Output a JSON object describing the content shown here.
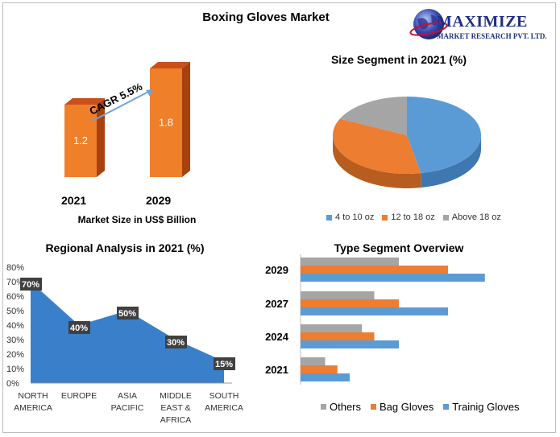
{
  "header": {
    "title": "Boxing Gloves Market",
    "logo_line1": "MAXIMIZE",
    "logo_line2": "MARKET RESEARCH PVT. LTD."
  },
  "market_size": {
    "cagr_label": "CAGR 5.5%",
    "caption": "Market Size in US$ Billion",
    "bars": [
      {
        "year": "2021",
        "value": 1.2,
        "label": "1.2"
      },
      {
        "year": "2029",
        "value": 1.8,
        "label": "1.8"
      }
    ]
  },
  "size_segment": {
    "title": "Size Segment in 2021 (%)",
    "legend": [
      "4 to 10 oz",
      "12 to 18 oz",
      "Above 18 oz"
    ]
  },
  "regional": {
    "title": "Regional Analysis in 2021 (%)"
  },
  "type_segment": {
    "title": "Type Segment Overview",
    "legend": [
      "Others",
      "Bag Gloves",
      "Trainig Gloves"
    ]
  },
  "colors": {
    "blue": "#5b9bd5",
    "orange": "#ed7d31",
    "gray": "#a5a5a5",
    "bar3d_front": "#f07f2a",
    "bar3d_top": "#c9501b",
    "bar3d_side": "#a8400f",
    "area_fill": "#3a7fc9",
    "label_box": "#404040"
  },
  "chart_data": [
    {
      "type": "bar",
      "title": "Boxing Gloves Market",
      "categories": [
        "2021",
        "2029"
      ],
      "values": [
        1.2,
        1.8
      ],
      "xlabel": "Market Size in US$ Billion",
      "annotations": [
        "CAGR 5.5%"
      ]
    },
    {
      "type": "pie",
      "title": "Size Segment in 2021 (%)",
      "labels": [
        "4 to 10 oz",
        "12 to 18 oz",
        "Above 18 oz"
      ],
      "values": [
        47,
        35,
        18
      ],
      "legend_position": "bottom"
    },
    {
      "type": "area",
      "title": "Regional Analysis in 2021 (%)",
      "categories": [
        "NORTH AMERICA",
        "EUROPE",
        "ASIA PACIFIC",
        "MIDDLE EAST & AFRICA",
        "SOUTH AMERICA"
      ],
      "values": [
        70,
        40,
        50,
        30,
        15
      ],
      "data_labels": [
        "70%",
        "40%",
        "50%",
        "30%",
        "15%"
      ],
      "ylim": [
        0,
        80
      ],
      "yticks": [
        "0%",
        "10%",
        "20%",
        "30%",
        "40%",
        "50%",
        "60%",
        "70%",
        "80%"
      ]
    },
    {
      "type": "bar",
      "orientation": "horizontal",
      "title": "Type Segment Overview",
      "categories": [
        "2029",
        "2027",
        "2024",
        "2021"
      ],
      "series": [
        {
          "name": "Others",
          "values": [
            4,
            3,
            2.5,
            1
          ]
        },
        {
          "name": "Bag Gloves",
          "values": [
            6,
            4,
            3,
            1.5
          ]
        },
        {
          "name": "Trainig Gloves",
          "values": [
            7.5,
            6,
            4,
            2
          ]
        }
      ],
      "legend_position": "bottom"
    }
  ]
}
